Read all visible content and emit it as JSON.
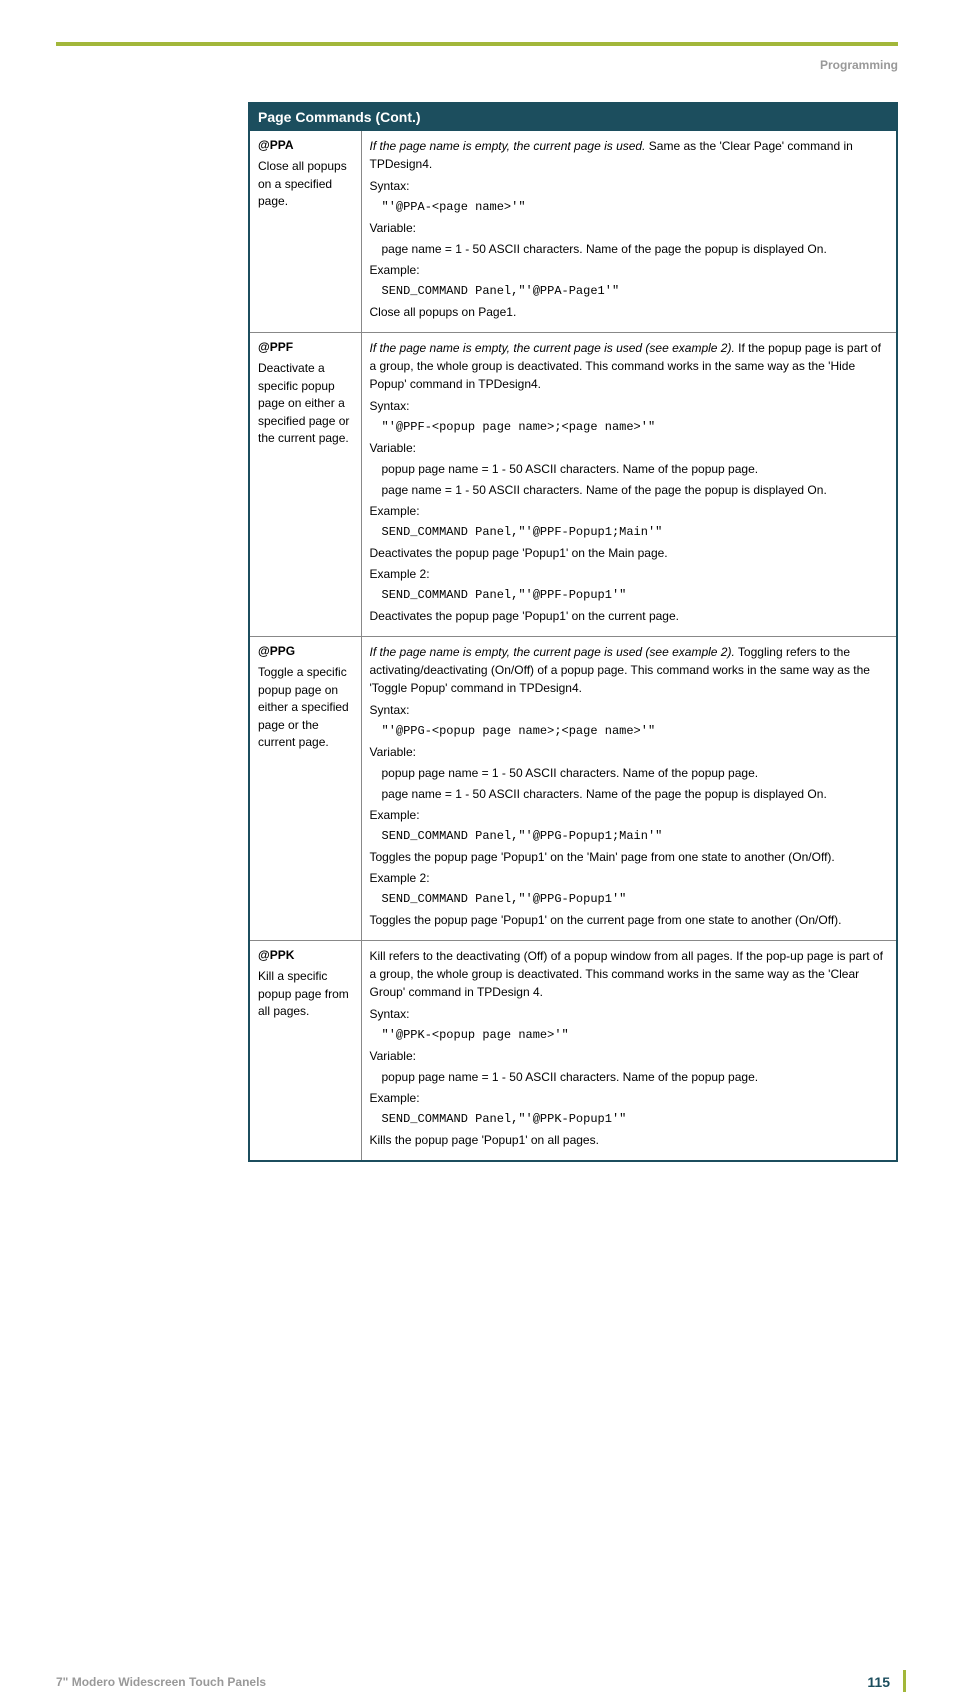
{
  "header": {
    "section": "Programming"
  },
  "table": {
    "title": "Page Commands (Cont.)",
    "colors": {
      "header_bg": "#1c4e5e",
      "header_fg": "#ffffff",
      "border": "#1c4e5e",
      "cell_border": "#888888",
      "accent": "#a2b73a"
    },
    "rows": [
      {
        "cmd": "@PPA",
        "cmd_desc": "Close all popups on a specified page.",
        "intro_i": "If the page name is empty, the current page is used.",
        "intro_rest": " Same as the 'Clear Page' command in TPDesign4.",
        "syntax_label": "Syntax:",
        "syntax_code": "\"'@PPA-<page name>'\"",
        "variable_label": "Variable:",
        "vars": [
          "page name = 1 - 50 ASCII characters. Name of the page the popup is displayed On."
        ],
        "example_label": "Example:",
        "example_code": "SEND_COMMAND Panel,\"'@PPA-Page1'\"",
        "example_expl": "Close all popups on Page1."
      },
      {
        "cmd": "@PPF",
        "cmd_desc": "Deactivate a specific popup page on either a specified page or the current page.",
        "intro_i": "If the page name is empty, the current page is used (see example 2).",
        "intro_rest": " If the popup page is part of a group, the whole group is deactivated. This command works in the same way as the 'Hide Popup' command in TPDesign4.",
        "syntax_label": "Syntax:",
        "syntax_code": "\"'@PPF-<popup page name>;<page name>'\"",
        "variable_label": "Variable:",
        "vars": [
          "popup page name = 1 - 50 ASCII characters. Name of the popup page.",
          "page name = 1 - 50 ASCII characters. Name of the page the popup is displayed On."
        ],
        "example_label": "Example:",
        "example_code": "SEND_COMMAND Panel,\"'@PPF-Popup1;Main'\"",
        "example_expl": "Deactivates the popup page 'Popup1' on the Main page.",
        "example2_label": "Example 2:",
        "example2_code": "SEND_COMMAND Panel,\"'@PPF-Popup1'\"",
        "example2_expl": "Deactivates the popup page 'Popup1' on the current page."
      },
      {
        "cmd": "@PPG",
        "cmd_desc": "Toggle a specific popup page on either a specified page or the current page.",
        "intro_i": "If the page name is empty, the current page is used (see example 2).",
        "intro_rest": " Toggling refers to the activating/deactivating (On/Off) of a popup page. This command works in the same way as the 'Toggle Popup' command in TPDesign4.",
        "syntax_label": "Syntax:",
        "syntax_code": "\"'@PPG-<popup page name>;<page name>'\"",
        "variable_label": "Variable:",
        "vars": [
          "popup page name = 1 - 50 ASCII characters. Name of the popup page.",
          "page name = 1 - 50 ASCII characters. Name of the page the popup is displayed On."
        ],
        "example_label": "Example:",
        "example_code": "SEND_COMMAND Panel,\"'@PPG-Popup1;Main'\"",
        "example_expl": "Toggles the popup page 'Popup1' on the 'Main' page from one state to another (On/Off).",
        "example2_label": "Example 2:",
        "example2_code": "SEND_COMMAND Panel,\"'@PPG-Popup1'\"",
        "example2_expl": "Toggles the popup page 'Popup1' on the current page from one state to another (On/Off)."
      },
      {
        "cmd": "@PPK",
        "cmd_desc": "Kill a specific popup page from all pages.",
        "intro_i": "",
        "intro_rest": "Kill refers to the deactivating (Off) of a popup window from all pages. If the pop-up page is part of a group, the whole group is deactivated. This command works in the same way as the 'Clear Group' command in TPDesign 4.",
        "syntax_label": "Syntax:",
        "syntax_code": "\"'@PPK-<popup page name>'\"",
        "variable_label": "Variable:",
        "vars": [
          "popup page name = 1 - 50 ASCII characters. Name of the popup page."
        ],
        "example_label": "Example:",
        "example_code": "SEND_COMMAND Panel,\"'@PPK-Popup1'\"",
        "example_expl": "Kills the popup page 'Popup1' on all pages."
      }
    ]
  },
  "footer": {
    "left": "7\" Modero Widescreen Touch Panels",
    "page": "115"
  }
}
